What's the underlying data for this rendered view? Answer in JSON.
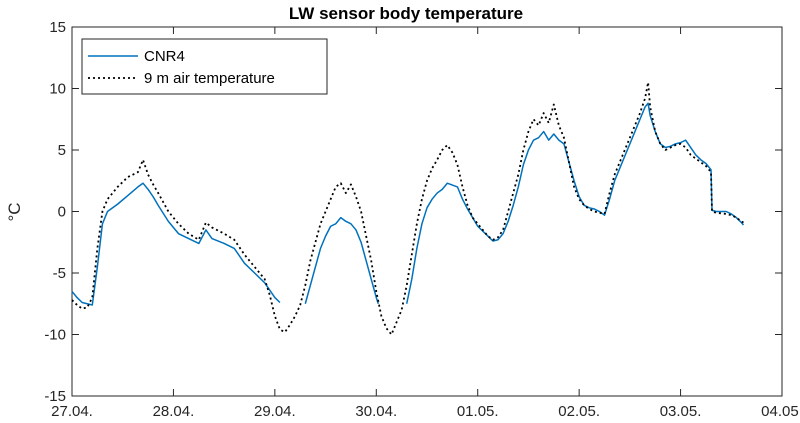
{
  "chart_data": {
    "type": "line",
    "title": "LW sensor body temperature",
    "xlabel": "",
    "ylabel": "°C",
    "xlim": [
      0,
      7
    ],
    "ylim": [
      -15,
      15
    ],
    "x_tick_labels": [
      "27.04.",
      "28.04.",
      "29.04.",
      "30.04.",
      "01.05.",
      "02.05.",
      "03.05.",
      "04.05."
    ],
    "y_ticks": [
      -15,
      -10,
      -5,
      0,
      5,
      10,
      15
    ],
    "legend_position": "top-left",
    "grid": false,
    "series": [
      {
        "name": "CNR4",
        "color": "#0072BD",
        "style": "solid",
        "segments": [
          [
            [
              0.0,
              -6.5
            ],
            [
              0.05,
              -7.0
            ],
            [
              0.1,
              -7.4
            ],
            [
              0.15,
              -7.5
            ],
            [
              0.2,
              -7.6
            ],
            [
              0.25,
              -4.5
            ],
            [
              0.3,
              -1.0
            ],
            [
              0.35,
              0.0
            ],
            [
              0.45,
              0.6
            ],
            [
              0.55,
              1.3
            ],
            [
              0.65,
              2.0
            ],
            [
              0.7,
              2.3
            ],
            [
              0.75,
              1.8
            ],
            [
              0.8,
              1.2
            ],
            [
              0.85,
              0.5
            ],
            [
              0.95,
              -0.8
            ],
            [
              1.05,
              -1.8
            ],
            [
              1.15,
              -2.2
            ],
            [
              1.25,
              -2.6
            ],
            [
              1.32,
              -1.5
            ],
            [
              1.38,
              -2.2
            ],
            [
              1.5,
              -2.6
            ],
            [
              1.6,
              -3.0
            ],
            [
              1.7,
              -4.2
            ],
            [
              1.8,
              -5.0
            ],
            [
              1.9,
              -5.8
            ],
            [
              2.0,
              -7.0
            ],
            [
              2.05,
              -7.4
            ]
          ],
          [
            [
              2.3,
              -7.5
            ],
            [
              2.35,
              -6.0
            ],
            [
              2.4,
              -4.5
            ],
            [
              2.45,
              -3.0
            ],
            [
              2.5,
              -2.0
            ],
            [
              2.55,
              -1.2
            ],
            [
              2.6,
              -1.0
            ],
            [
              2.65,
              -0.5
            ],
            [
              2.7,
              -0.8
            ],
            [
              2.75,
              -1.0
            ],
            [
              2.8,
              -1.5
            ],
            [
              2.85,
              -2.5
            ],
            [
              2.9,
              -4.0
            ],
            [
              2.95,
              -5.5
            ],
            [
              3.0,
              -7.0
            ],
            [
              3.02,
              -7.5
            ]
          ],
          [
            [
              3.3,
              -7.5
            ],
            [
              3.35,
              -5.5
            ],
            [
              3.4,
              -3.0
            ],
            [
              3.45,
              -1.0
            ],
            [
              3.5,
              0.3
            ],
            [
              3.55,
              1.0
            ],
            [
              3.6,
              1.5
            ],
            [
              3.65,
              1.8
            ],
            [
              3.7,
              2.3
            ],
            [
              3.8,
              2.0
            ],
            [
              3.85,
              1.0
            ],
            [
              3.9,
              0.2
            ],
            [
              3.95,
              -0.5
            ],
            [
              4.0,
              -1.2
            ],
            [
              4.1,
              -2.0
            ],
            [
              4.15,
              -2.4
            ],
            [
              4.2,
              -2.3
            ],
            [
              4.25,
              -1.8
            ],
            [
              4.3,
              -0.8
            ],
            [
              4.35,
              0.5
            ],
            [
              4.4,
              2.0
            ],
            [
              4.45,
              3.8
            ],
            [
              4.5,
              5.0
            ],
            [
              4.55,
              5.8
            ],
            [
              4.6,
              6.0
            ],
            [
              4.65,
              6.5
            ],
            [
              4.7,
              5.8
            ],
            [
              4.75,
              6.3
            ],
            [
              4.8,
              5.8
            ],
            [
              4.85,
              5.5
            ],
            [
              4.9,
              4.0
            ],
            [
              4.95,
              2.5
            ],
            [
              5.0,
              1.2
            ],
            [
              5.05,
              0.5
            ],
            [
              5.1,
              0.3
            ],
            [
              5.15,
              0.2
            ],
            [
              5.2,
              0.0
            ],
            [
              5.25,
              -0.3
            ],
            [
              5.3,
              1.0
            ],
            [
              5.35,
              2.5
            ],
            [
              5.4,
              3.5
            ],
            [
              5.45,
              4.5
            ],
            [
              5.5,
              5.5
            ],
            [
              5.55,
              6.5
            ],
            [
              5.6,
              7.5
            ],
            [
              5.65,
              8.5
            ],
            [
              5.68,
              8.8
            ],
            [
              5.7,
              7.8
            ],
            [
              5.75,
              6.5
            ],
            [
              5.8,
              5.5
            ],
            [
              5.85,
              5.2
            ],
            [
              5.9,
              5.3
            ],
            [
              5.95,
              5.5
            ],
            [
              6.0,
              5.6
            ],
            [
              6.05,
              5.8
            ],
            [
              6.1,
              5.2
            ],
            [
              6.15,
              4.6
            ],
            [
              6.2,
              4.2
            ],
            [
              6.25,
              3.9
            ],
            [
              6.3,
              3.4
            ],
            [
              6.31,
              0.1
            ],
            [
              6.35,
              0.0
            ],
            [
              6.45,
              0.0
            ],
            [
              6.5,
              -0.2
            ],
            [
              6.55,
              -0.5
            ],
            [
              6.6,
              -0.9
            ],
            [
              6.62,
              -1.1
            ]
          ]
        ]
      },
      {
        "name": "9 m air temperature",
        "color": "#000000",
        "style": "dotted",
        "segments": [
          [
            [
              0.0,
              -7.2
            ],
            [
              0.05,
              -7.6
            ],
            [
              0.1,
              -7.9
            ],
            [
              0.15,
              -7.8
            ],
            [
              0.2,
              -7.0
            ],
            [
              0.25,
              -3.0
            ],
            [
              0.3,
              0.0
            ],
            [
              0.35,
              1.0
            ],
            [
              0.45,
              2.0
            ],
            [
              0.55,
              2.8
            ],
            [
              0.65,
              3.2
            ],
            [
              0.7,
              4.2
            ],
            [
              0.75,
              3.0
            ],
            [
              0.8,
              2.2
            ],
            [
              0.85,
              1.5
            ],
            [
              0.95,
              0.0
            ],
            [
              1.05,
              -1.0
            ],
            [
              1.15,
              -1.8
            ],
            [
              1.25,
              -2.3
            ],
            [
              1.32,
              -0.9
            ],
            [
              1.38,
              -1.3
            ],
            [
              1.5,
              -1.8
            ],
            [
              1.6,
              -2.3
            ],
            [
              1.7,
              -3.5
            ],
            [
              1.8,
              -4.5
            ],
            [
              1.9,
              -5.5
            ],
            [
              1.95,
              -6.8
            ],
            [
              2.0,
              -8.5
            ],
            [
              2.05,
              -9.6
            ],
            [
              2.1,
              -9.8
            ],
            [
              2.15,
              -9.2
            ],
            [
              2.2,
              -8.5
            ],
            [
              2.25,
              -7.6
            ],
            [
              2.3,
              -6.0
            ],
            [
              2.35,
              -4.0
            ],
            [
              2.4,
              -2.5
            ],
            [
              2.45,
              -1.0
            ],
            [
              2.5,
              0.0
            ],
            [
              2.55,
              1.0
            ],
            [
              2.6,
              2.0
            ],
            [
              2.65,
              2.3
            ],
            [
              2.7,
              1.5
            ],
            [
              2.75,
              2.2
            ],
            [
              2.8,
              1.2
            ],
            [
              2.85,
              0.0
            ],
            [
              2.9,
              -2.0
            ],
            [
              2.95,
              -4.0
            ],
            [
              3.0,
              -6.5
            ],
            [
              3.05,
              -8.5
            ],
            [
              3.1,
              -9.5
            ],
            [
              3.15,
              -10.0
            ],
            [
              3.2,
              -9.0
            ],
            [
              3.25,
              -8.0
            ],
            [
              3.3,
              -6.0
            ],
            [
              3.35,
              -3.5
            ],
            [
              3.4,
              -1.0
            ],
            [
              3.45,
              1.0
            ],
            [
              3.5,
              2.5
            ],
            [
              3.55,
              3.5
            ],
            [
              3.6,
              4.2
            ],
            [
              3.65,
              5.0
            ],
            [
              3.7,
              5.4
            ],
            [
              3.75,
              4.8
            ],
            [
              3.8,
              3.8
            ],
            [
              3.85,
              2.0
            ],
            [
              3.9,
              0.5
            ],
            [
              3.95,
              -0.5
            ],
            [
              4.0,
              -1.0
            ],
            [
              4.1,
              -2.0
            ],
            [
              4.15,
              -2.3
            ],
            [
              4.2,
              -2.1
            ],
            [
              4.25,
              -1.5
            ],
            [
              4.3,
              0.0
            ],
            [
              4.35,
              1.5
            ],
            [
              4.4,
              3.0
            ],
            [
              4.45,
              5.0
            ],
            [
              4.5,
              6.5
            ],
            [
              4.55,
              7.5
            ],
            [
              4.6,
              7.0
            ],
            [
              4.65,
              8.0
            ],
            [
              4.7,
              7.2
            ],
            [
              4.75,
              8.7
            ],
            [
              4.8,
              7.0
            ],
            [
              4.85,
              6.0
            ],
            [
              4.9,
              4.0
            ],
            [
              4.95,
              2.0
            ],
            [
              5.0,
              1.0
            ],
            [
              5.05,
              0.5
            ],
            [
              5.1,
              0.2
            ],
            [
              5.15,
              0.0
            ],
            [
              5.2,
              -0.1
            ],
            [
              5.25,
              -0.2
            ],
            [
              5.3,
              1.5
            ],
            [
              5.35,
              3.0
            ],
            [
              5.4,
              4.0
            ],
            [
              5.45,
              5.0
            ],
            [
              5.5,
              6.0
            ],
            [
              5.55,
              7.0
            ],
            [
              5.6,
              8.0
            ],
            [
              5.65,
              9.2
            ],
            [
              5.68,
              10.5
            ],
            [
              5.7,
              8.5
            ],
            [
              5.75,
              6.5
            ],
            [
              5.8,
              5.5
            ],
            [
              5.85,
              5.0
            ],
            [
              5.9,
              5.2
            ],
            [
              5.95,
              5.4
            ],
            [
              6.0,
              5.5
            ],
            [
              6.05,
              5.2
            ],
            [
              6.1,
              4.6
            ],
            [
              6.15,
              4.3
            ],
            [
              6.2,
              4.0
            ],
            [
              6.25,
              3.7
            ],
            [
              6.3,
              3.2
            ],
            [
              6.31,
              0.0
            ],
            [
              6.35,
              -0.1
            ],
            [
              6.45,
              -0.2
            ],
            [
              6.5,
              -0.3
            ],
            [
              6.55,
              -0.5
            ],
            [
              6.6,
              -0.8
            ],
            [
              6.62,
              -0.9
            ]
          ]
        ]
      }
    ]
  }
}
